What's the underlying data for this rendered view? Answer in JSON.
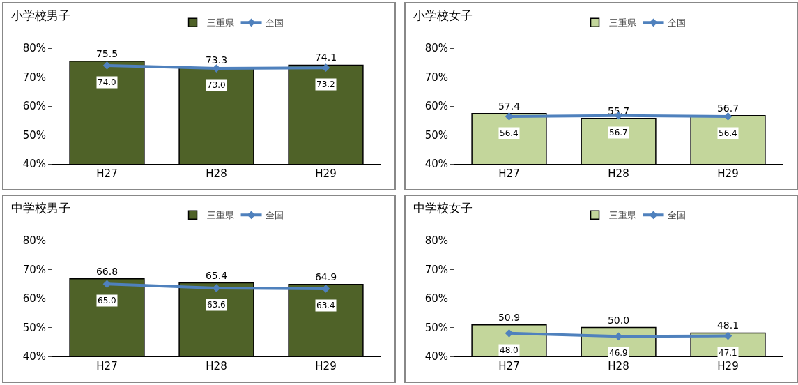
{
  "chart_data": [
    {
      "type": "bar",
      "title": "小学校男子",
      "categories": [
        "H27",
        "H28",
        "H29"
      ],
      "series": [
        {
          "name": "三重県",
          "color": "#4f6228",
          "values": [
            75.5,
            73.3,
            74.1
          ],
          "value_labels": [
            "75.5",
            "73.3",
            "74.1"
          ]
        },
        {
          "name": "全国",
          "type": "line",
          "color": "#4f81bd",
          "values": [
            74.0,
            73.0,
            73.2
          ],
          "value_labels": [
            "74.0",
            "73.0",
            "73.2"
          ]
        }
      ],
      "ylim": [
        40,
        80
      ],
      "yticks": [
        {
          "value": 40,
          "label": "40%"
        },
        {
          "value": 50,
          "label": "50%"
        },
        {
          "value": 60,
          "label": "60%"
        },
        {
          "value": 70,
          "label": "70%"
        },
        {
          "value": 80,
          "label": "80%"
        }
      ],
      "grid": false,
      "legend": "top",
      "marker": "diamond"
    },
    {
      "type": "bar",
      "title": "小学校女子",
      "categories": [
        "H27",
        "H28",
        "H29"
      ],
      "series": [
        {
          "name": "三重県",
          "color": "#c3d69b",
          "values": [
            57.4,
            55.7,
            56.7
          ],
          "value_labels": [
            "57.4",
            "55.7",
            "56.7"
          ]
        },
        {
          "name": "全国",
          "type": "line",
          "color": "#4f81bd",
          "values": [
            56.4,
            56.7,
            56.4
          ],
          "value_labels": [
            "56.4",
            "56.7",
            "56.4"
          ]
        }
      ],
      "ylim": [
        40,
        80
      ],
      "yticks": [
        {
          "value": 40,
          "label": "40%"
        },
        {
          "value": 50,
          "label": "50%"
        },
        {
          "value": 60,
          "label": "60%"
        },
        {
          "value": 70,
          "label": "70%"
        },
        {
          "value": 80,
          "label": "80%"
        }
      ],
      "grid": false,
      "legend": "top",
      "marker": "diamond"
    },
    {
      "type": "bar",
      "title": "中学校男子",
      "categories": [
        "H27",
        "H28",
        "H29"
      ],
      "series": [
        {
          "name": "三重県",
          "color": "#4f6228",
          "values": [
            66.8,
            65.4,
            64.9
          ],
          "value_labels": [
            "66.8",
            "65.4",
            "64.9"
          ]
        },
        {
          "name": "全国",
          "type": "line",
          "color": "#4f81bd",
          "values": [
            65.0,
            63.6,
            63.4
          ],
          "value_labels": [
            "65.0",
            "63.6",
            "63.4"
          ]
        }
      ],
      "ylim": [
        40,
        80
      ],
      "yticks": [
        {
          "value": 40,
          "label": "40%"
        },
        {
          "value": 50,
          "label": "50%"
        },
        {
          "value": 60,
          "label": "60%"
        },
        {
          "value": 70,
          "label": "70%"
        },
        {
          "value": 80,
          "label": "80%"
        }
      ],
      "grid": false,
      "legend": "top",
      "marker": "diamond"
    },
    {
      "type": "bar",
      "title": "中学校女子",
      "categories": [
        "H27",
        "H28",
        "H29"
      ],
      "series": [
        {
          "name": "三重県",
          "color": "#c3d69b",
          "values": [
            50.9,
            50.0,
            48.1
          ],
          "value_labels": [
            "50.9",
            "50.0",
            "48.1"
          ]
        },
        {
          "name": "全国",
          "type": "line",
          "color": "#4f81bd",
          "values": [
            48.0,
            46.9,
            47.1
          ],
          "value_labels": [
            "48.0",
            "46.9",
            "47.1"
          ]
        }
      ],
      "ylim": [
        40,
        80
      ],
      "yticks": [
        {
          "value": 40,
          "label": "40%"
        },
        {
          "value": 50,
          "label": "50%"
        },
        {
          "value": 60,
          "label": "60%"
        },
        {
          "value": 70,
          "label": "70%"
        },
        {
          "value": 80,
          "label": "80%"
        }
      ],
      "grid": false,
      "legend": "top",
      "marker": "diamond"
    }
  ]
}
